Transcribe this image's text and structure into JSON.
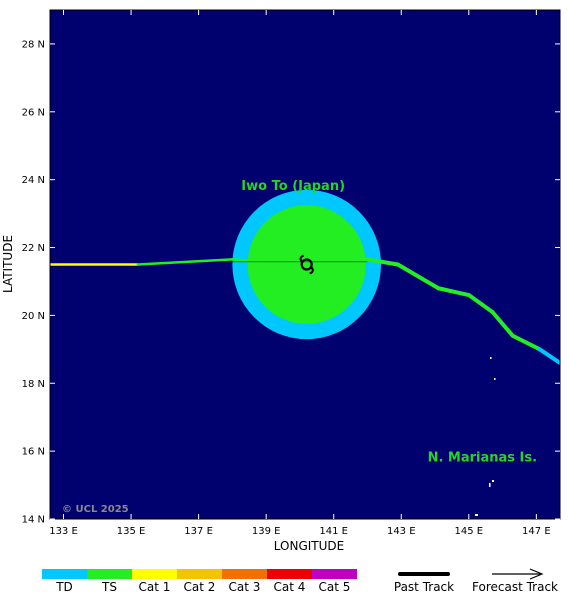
{
  "map": {
    "ocean_color": "#00006e",
    "frame_color": "#000000",
    "lon_range": [
      132.6,
      147.7
    ],
    "lat_range": [
      14,
      29
    ],
    "x_title": "LONGITUDE",
    "y_title": "LATITUDE",
    "lon_ticks": [
      {
        "value": 133,
        "label": "133 E"
      },
      {
        "value": 135,
        "label": "135 E"
      },
      {
        "value": 137,
        "label": "137 E"
      },
      {
        "value": 139,
        "label": "139 E"
      },
      {
        "value": 141,
        "label": "141 E"
      },
      {
        "value": 143,
        "label": "143 E"
      },
      {
        "value": 145,
        "label": "145 E"
      },
      {
        "value": 147,
        "label": "147 E"
      }
    ],
    "lat_ticks": [
      {
        "value": 14,
        "label": "14 N"
      },
      {
        "value": 16,
        "label": "16 N"
      },
      {
        "value": 18,
        "label": "18 N"
      },
      {
        "value": 20,
        "label": "20 N"
      },
      {
        "value": 22,
        "label": "22 N"
      },
      {
        "value": 24,
        "label": "24 N"
      },
      {
        "value": 26,
        "label": "26 N"
      },
      {
        "value": 28,
        "label": "28 N"
      }
    ],
    "copyright": "© UCL 2025"
  },
  "places": [
    {
      "label": "Iwo To (Japan)",
      "lon": 139.8,
      "lat": 23.7,
      "color": "#22d622"
    },
    {
      "label": "N. Marianas Is.",
      "lon": 145.4,
      "lat": 15.7,
      "color": "#22d622"
    }
  ],
  "storm": {
    "center": {
      "lon": 140.2,
      "lat": 21.5
    },
    "outer_radius_deg": 2.2,
    "outer_color": "#00c8ff",
    "inner_radius_deg": 1.75,
    "inner_color": "#22ee22",
    "center_icon": "cyclone-symbol-icon"
  },
  "track": {
    "past": [
      {
        "lon": 132.6,
        "lat": 21.5,
        "category": "Cat 1"
      },
      {
        "lon": 135.2,
        "lat": 21.5,
        "category": "TS"
      },
      {
        "lon": 138.0,
        "lat": 21.65,
        "category": "TS"
      },
      {
        "lon": 140.2,
        "lat": 21.5,
        "category": "TS"
      },
      {
        "lon": 142.0,
        "lat": 21.65,
        "category": "TS"
      },
      {
        "lon": 142.9,
        "lat": 21.5,
        "category": "TS"
      },
      {
        "lon": 144.1,
        "lat": 20.8,
        "category": "TS"
      },
      {
        "lon": 145.0,
        "lat": 20.6,
        "category": "TS"
      },
      {
        "lon": 145.7,
        "lat": 20.1,
        "category": "TS"
      },
      {
        "lon": 146.3,
        "lat": 19.4,
        "category": "TS"
      },
      {
        "lon": 147.1,
        "lat": 19.0,
        "category": "TD"
      },
      {
        "lon": 147.7,
        "lat": 18.6,
        "category": "TD"
      }
    ]
  },
  "legend": {
    "categories": [
      {
        "label": "TD",
        "color": "#00c8ff"
      },
      {
        "label": "TS",
        "color": "#22ee22"
      },
      {
        "label": "Cat 1",
        "color": "#ffff00"
      },
      {
        "label": "Cat 2",
        "color": "#f5c400"
      },
      {
        "label": "Cat 3",
        "color": "#f07000"
      },
      {
        "label": "Cat 4",
        "color": "#ee0000"
      },
      {
        "label": "Cat 5",
        "color": "#c000c0"
      }
    ],
    "past_track_label": "Past Track",
    "forecast_track_label": "Forecast Track"
  }
}
